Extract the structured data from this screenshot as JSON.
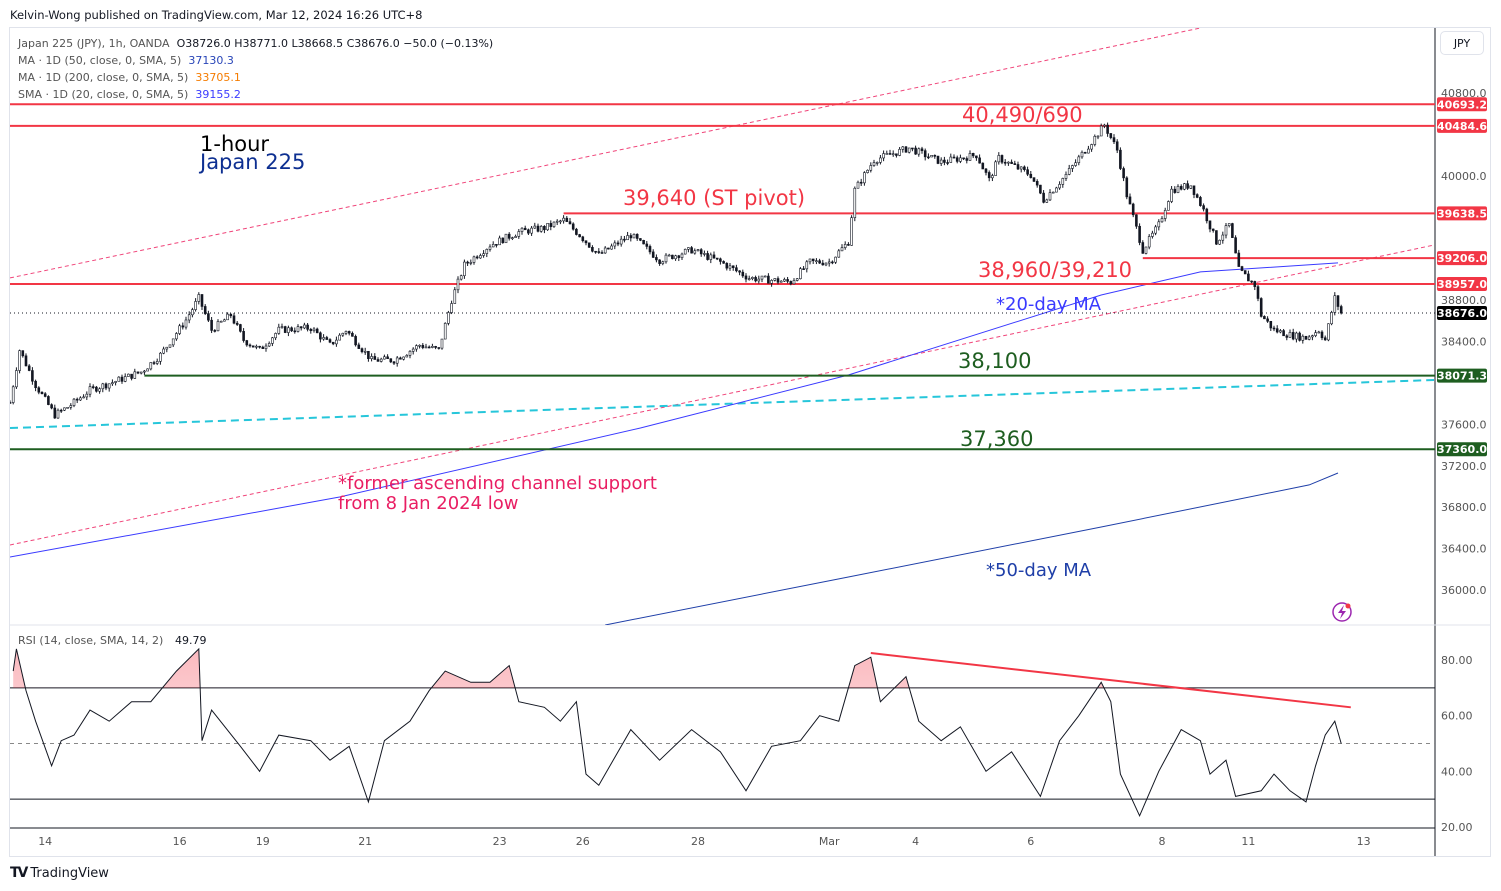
{
  "publisher": "Kelvin-Wong published on TradingView.com, Mar 12, 2024 16:26 UTC+8",
  "legend": {
    "symbol": "Japan 225 (JPY), 1h, OANDA",
    "ohlc": "O38726.0  H38771.0  L38668.5  C38676.0  −50.0 (−0.13%)",
    "ma50_label": "MA · 1D (50, close, 0, SMA, 5)",
    "ma50_value": "37130.3",
    "ma200_label": "MA · 1D (200, close, 0, SMA, 5)",
    "ma200_value": "33705.1",
    "sma20_label": "SMA · 1D (20, close, 0, SMA, 5)",
    "sma20_value": "39155.2"
  },
  "currency_button": "JPY",
  "brand": "TradingView",
  "rsi_legend": {
    "label": "RSI (14, close, SMA, 14, 2)",
    "value": "49.79"
  },
  "annotations": {
    "timeframe": "1-hour",
    "instrument": "Japan 225",
    "r1": "40,490/690",
    "r2": "39,640 (ST pivot)",
    "r3": "38,960/39,210",
    "ma20": "*20-day MA",
    "s1": "38,100",
    "s2": "37,360",
    "channel_line1": "*former ascending channel support",
    "channel_line2": "from 8 Jan 2024   low",
    "ma50": "*50-day MA"
  },
  "colors": {
    "resistance": "#f23645",
    "support": "#1e5e20",
    "ma20": "#3a3aff",
    "ma50": "#1f3fa8",
    "channel": "#f0457a",
    "cyan": "#26c6da",
    "candle": "#131722",
    "last_price": "#000000"
  },
  "chart_data": {
    "type": "candlestick",
    "x_unit": "hourly bar index",
    "y_range": [
      35662,
      41430
    ],
    "price_ticks": [
      40800,
      40000,
      38800,
      38400,
      37600,
      37200,
      36800,
      36400,
      36000
    ],
    "price_tick_labels": [
      "40800.0",
      "40000.0",
      "38800.0",
      "38400.0",
      "37600.0",
      "37200.0",
      "36800.0",
      "36400.0",
      "36000.0"
    ],
    "time_ticks": [
      {
        "bar": 11,
        "label": "14"
      },
      {
        "bar": 53,
        "label": "16"
      },
      {
        "bar": 79,
        "label": "19"
      },
      {
        "bar": 111,
        "label": "21"
      },
      {
        "bar": 153,
        "label": "23"
      },
      {
        "bar": 179,
        "label": "26"
      },
      {
        "bar": 215,
        "label": "28"
      },
      {
        "bar": 256,
        "label": "Mar"
      },
      {
        "bar": 283,
        "label": "4"
      },
      {
        "bar": 319,
        "label": "6"
      },
      {
        "bar": 360,
        "label": "8"
      },
      {
        "bar": 387,
        "label": "11"
      },
      {
        "bar": 423,
        "label": "13"
      }
    ],
    "price_path": [
      [
        1,
        37981
      ],
      [
        3,
        38319
      ],
      [
        8,
        37981
      ],
      [
        14,
        37691
      ],
      [
        19,
        37788
      ],
      [
        25,
        37932
      ],
      [
        34,
        38029
      ],
      [
        41,
        38107
      ],
      [
        47,
        38271
      ],
      [
        55,
        38609
      ],
      [
        59,
        38821
      ],
      [
        63,
        38512
      ],
      [
        69,
        38657
      ],
      [
        73,
        38416
      ],
      [
        78,
        38319
      ],
      [
        84,
        38512
      ],
      [
        94,
        38532
      ],
      [
        100,
        38367
      ],
      [
        105,
        38512
      ],
      [
        113,
        38222
      ],
      [
        120,
        38222
      ],
      [
        128,
        38367
      ],
      [
        134,
        38319
      ],
      [
        138,
        38802
      ],
      [
        142,
        39140
      ],
      [
        150,
        39333
      ],
      [
        159,
        39459
      ],
      [
        167,
        39498
      ],
      [
        173,
        39575
      ],
      [
        178,
        39430
      ],
      [
        184,
        39237
      ],
      [
        194,
        39430
      ],
      [
        203,
        39188
      ],
      [
        213,
        39285
      ],
      [
        222,
        39169
      ],
      [
        231,
        39015
      ],
      [
        244,
        38976
      ],
      [
        250,
        39169
      ],
      [
        256,
        39169
      ],
      [
        262,
        39363
      ],
      [
        264,
        39865
      ],
      [
        270,
        40155
      ],
      [
        281,
        40270
      ],
      [
        291,
        40135
      ],
      [
        302,
        40203
      ],
      [
        306,
        39961
      ],
      [
        309,
        40174
      ],
      [
        319,
        40010
      ],
      [
        323,
        39768
      ],
      [
        330,
        40010
      ],
      [
        336,
        40251
      ],
      [
        342,
        40493
      ],
      [
        346,
        40251
      ],
      [
        349,
        39816
      ],
      [
        354,
        39285
      ],
      [
        359,
        39527
      ],
      [
        363,
        39865
      ],
      [
        369,
        39913
      ],
      [
        373,
        39671
      ],
      [
        377,
        39363
      ],
      [
        381,
        39527
      ],
      [
        384,
        39092
      ],
      [
        389,
        38947
      ],
      [
        391,
        38657
      ],
      [
        395,
        38512
      ],
      [
        400,
        38464
      ],
      [
        405,
        38435
      ],
      [
        409,
        38512
      ],
      [
        411,
        38416
      ],
      [
        414,
        38821
      ],
      [
        416,
        38676
      ]
    ],
    "levels": [
      {
        "price": 40693.2,
        "label": "40693.2",
        "kind": "resistance",
        "from_bar": 0
      },
      {
        "price": 40484.6,
        "label": "40484.6",
        "kind": "resistance",
        "from_bar": 0
      },
      {
        "price": 39638.5,
        "label": "39638.5",
        "kind": "resistance",
        "from_bar": 173
      },
      {
        "price": 39206.0,
        "label": "39206.0",
        "kind": "resistance",
        "from_bar": 354
      },
      {
        "price": 38957.0,
        "label": "38957.0",
        "kind": "resistance",
        "from_bar": 0
      },
      {
        "price": 38071.3,
        "label": "38071.3",
        "kind": "support",
        "from_bar": 42
      },
      {
        "price": 37360.0,
        "label": "37360.0",
        "kind": "support",
        "from_bar": 0
      }
    ],
    "last_price": {
      "price": 38676.0,
      "label": "38676.0"
    },
    "channel_upper": [
      [
        0,
        39015
      ],
      [
        372,
        41430
      ]
    ],
    "channel_lower": [
      [
        0,
        36435
      ],
      [
        445,
        39333
      ]
    ],
    "cyan_trendline": [
      [
        0,
        37565
      ],
      [
        445,
        38029
      ]
    ],
    "ma20": [
      [
        0,
        36319
      ],
      [
        103,
        36899
      ],
      [
        197,
        37565
      ],
      [
        262,
        38077
      ],
      [
        341,
        38850
      ],
      [
        372,
        39073
      ],
      [
        415,
        39160
      ]
    ],
    "ma50": [
      [
        186,
        35662
      ],
      [
        262,
        36126
      ],
      [
        341,
        36609
      ],
      [
        406,
        37015
      ],
      [
        415,
        37130
      ]
    ],
    "rsi": {
      "range": [
        20,
        80
      ],
      "ticks": [
        80,
        60,
        40,
        20
      ],
      "tick_labels": [
        "80.00",
        "60.00",
        "40.00",
        "20.00"
      ],
      "bands": [
        70,
        50,
        30
      ],
      "values": [
        [
          1,
          76
        ],
        [
          2,
          84
        ],
        [
          5,
          69
        ],
        [
          8,
          58
        ],
        [
          13,
          42
        ],
        [
          16,
          51
        ],
        [
          20,
          53
        ],
        [
          25,
          62
        ],
        [
          31,
          58
        ],
        [
          38,
          65
        ],
        [
          44,
          65
        ],
        [
          52,
          76
        ],
        [
          59,
          84
        ],
        [
          60,
          51
        ],
        [
          63,
          62
        ],
        [
          72,
          49
        ],
        [
          78,
          40
        ],
        [
          84,
          53
        ],
        [
          94,
          51
        ],
        [
          100,
          44
        ],
        [
          106,
          49
        ],
        [
          112,
          29
        ],
        [
          117,
          51
        ],
        [
          125,
          58
        ],
        [
          131,
          69
        ],
        [
          136,
          76
        ],
        [
          144,
          72
        ],
        [
          150,
          72
        ],
        [
          156,
          78
        ],
        [
          159,
          65
        ],
        [
          167,
          63
        ],
        [
          172,
          58
        ],
        [
          177,
          65
        ],
        [
          180,
          39
        ],
        [
          184,
          35
        ],
        [
          194,
          55
        ],
        [
          203,
          44
        ],
        [
          213,
          55
        ],
        [
          222,
          47
        ],
        [
          230,
          33
        ],
        [
          238,
          49
        ],
        [
          247,
          51
        ],
        [
          253,
          60
        ],
        [
          259,
          58
        ],
        [
          264,
          78
        ],
        [
          269,
          81
        ],
        [
          272,
          65
        ],
        [
          280,
          74
        ],
        [
          284,
          58
        ],
        [
          291,
          51
        ],
        [
          297,
          56
        ],
        [
          305,
          40
        ],
        [
          313,
          47
        ],
        [
          322,
          31
        ],
        [
          328,
          51
        ],
        [
          334,
          60
        ],
        [
          341,
          72
        ],
        [
          344,
          65
        ],
        [
          347,
          39
        ],
        [
          353,
          24
        ],
        [
          359,
          40
        ],
        [
          366,
          55
        ],
        [
          372,
          51
        ],
        [
          375,
          39
        ],
        [
          380,
          44
        ],
        [
          383,
          31
        ],
        [
          391,
          33
        ],
        [
          395,
          39
        ],
        [
          400,
          33
        ],
        [
          405,
          29
        ],
        [
          408,
          42
        ],
        [
          411,
          53
        ],
        [
          414,
          58
        ],
        [
          416,
          50
        ]
      ],
      "divergence_line": [
        [
          269,
          82.5
        ],
        [
          419,
          63
        ]
      ]
    }
  }
}
